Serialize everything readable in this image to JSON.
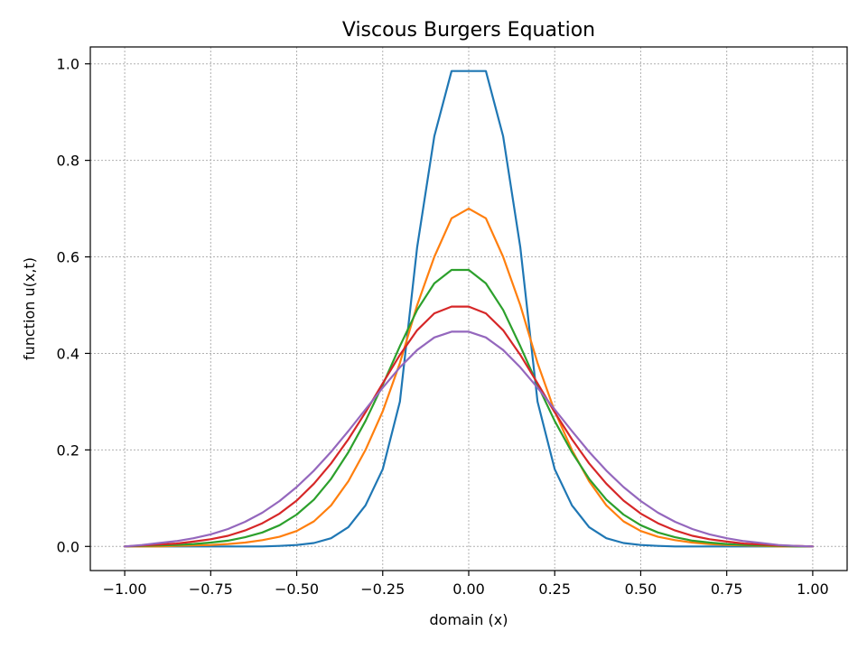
{
  "chart_data": {
    "type": "line",
    "title": "Viscous Burgers Equation",
    "xlabel": "domain (x)",
    "ylabel": "function u(x,t)",
    "xlim": [
      -1.1,
      1.1
    ],
    "ylim": [
      -0.05,
      1.035
    ],
    "grid": true,
    "x_ticks": [
      -1.0,
      -0.75,
      -0.5,
      -0.25,
      0.0,
      0.25,
      0.5,
      0.75,
      1.0
    ],
    "x_tick_labels": [
      "−1.00",
      "−0.75",
      "−0.50",
      "−0.25",
      "0.00",
      "0.25",
      "0.50",
      "0.75",
      "1.00"
    ],
    "y_ticks": [
      0.0,
      0.2,
      0.4,
      0.6,
      0.8,
      1.0
    ],
    "y_tick_labels": [
      "0.0",
      "0.2",
      "0.4",
      "0.6",
      "0.8",
      "1.0"
    ],
    "series": [
      {
        "color": "#1f77b4",
        "x": [
          -1.0,
          -0.95,
          -0.9,
          -0.85,
          -0.8,
          -0.75,
          -0.7,
          -0.65,
          -0.6,
          -0.55,
          -0.5,
          -0.45,
          -0.4,
          -0.35,
          -0.3,
          -0.25,
          -0.2,
          -0.15,
          -0.1,
          -0.05,
          0.0,
          0.05,
          0.1,
          0.15,
          0.2,
          0.25,
          0.3,
          0.35,
          0.4,
          0.45,
          0.5,
          0.55,
          0.6,
          0.65,
          0.7,
          0.75,
          0.8,
          0.85,
          0.9,
          0.95,
          1.0
        ],
        "y": [
          0.0,
          0.0,
          0.0,
          0.0,
          0.0,
          0.0,
          0.0,
          0.0,
          0.0,
          0.001,
          0.003,
          0.007,
          0.017,
          0.04,
          0.085,
          0.16,
          0.3,
          0.62,
          0.85,
          0.985,
          0.985,
          0.985,
          0.85,
          0.62,
          0.3,
          0.16,
          0.085,
          0.04,
          0.017,
          0.007,
          0.003,
          0.001,
          0.0,
          0.0,
          0.0,
          0.0,
          0.0,
          0.0,
          0.0,
          0.0,
          0.0
        ]
      },
      {
        "color": "#ff7f0e",
        "x": [
          -1.0,
          -0.95,
          -0.9,
          -0.85,
          -0.8,
          -0.75,
          -0.7,
          -0.65,
          -0.6,
          -0.55,
          -0.5,
          -0.45,
          -0.4,
          -0.35,
          -0.3,
          -0.25,
          -0.2,
          -0.15,
          -0.1,
          -0.05,
          0.0,
          0.05,
          0.1,
          0.15,
          0.2,
          0.25,
          0.3,
          0.35,
          0.4,
          0.45,
          0.5,
          0.55,
          0.6,
          0.65,
          0.7,
          0.75,
          0.8,
          0.85,
          0.9,
          0.95,
          1.0
        ],
        "y": [
          0.0,
          0.0,
          0.0,
          0.001,
          0.002,
          0.003,
          0.005,
          0.008,
          0.013,
          0.02,
          0.032,
          0.052,
          0.085,
          0.135,
          0.2,
          0.28,
          0.38,
          0.5,
          0.6,
          0.68,
          0.7,
          0.68,
          0.6,
          0.5,
          0.38,
          0.28,
          0.2,
          0.135,
          0.085,
          0.052,
          0.032,
          0.02,
          0.013,
          0.008,
          0.005,
          0.003,
          0.002,
          0.001,
          0.0,
          0.0,
          0.0
        ]
      },
      {
        "color": "#2ca02c",
        "x": [
          -1.0,
          -0.95,
          -0.9,
          -0.85,
          -0.8,
          -0.75,
          -0.7,
          -0.65,
          -0.6,
          -0.55,
          -0.5,
          -0.45,
          -0.4,
          -0.35,
          -0.3,
          -0.25,
          -0.2,
          -0.15,
          -0.1,
          -0.05,
          0.0,
          0.05,
          0.1,
          0.15,
          0.2,
          0.25,
          0.3,
          0.35,
          0.4,
          0.45,
          0.5,
          0.55,
          0.6,
          0.65,
          0.7,
          0.75,
          0.8,
          0.85,
          0.9,
          0.95,
          1.0
        ],
        "y": [
          0.0,
          0.001,
          0.002,
          0.003,
          0.005,
          0.008,
          0.012,
          0.019,
          0.029,
          0.044,
          0.066,
          0.097,
          0.14,
          0.195,
          0.26,
          0.335,
          0.415,
          0.49,
          0.545,
          0.573,
          0.573,
          0.545,
          0.49,
          0.415,
          0.335,
          0.26,
          0.195,
          0.14,
          0.097,
          0.066,
          0.044,
          0.029,
          0.019,
          0.012,
          0.008,
          0.005,
          0.003,
          0.002,
          0.001,
          0.0,
          0.0
        ]
      },
      {
        "color": "#d62728",
        "x": [
          -1.0,
          -0.95,
          -0.9,
          -0.85,
          -0.8,
          -0.75,
          -0.7,
          -0.65,
          -0.6,
          -0.55,
          -0.5,
          -0.45,
          -0.4,
          -0.35,
          -0.3,
          -0.25,
          -0.2,
          -0.15,
          -0.1,
          -0.05,
          0.0,
          0.05,
          0.1,
          0.15,
          0.2,
          0.25,
          0.3,
          0.35,
          0.4,
          0.45,
          0.5,
          0.55,
          0.6,
          0.65,
          0.7,
          0.75,
          0.8,
          0.85,
          0.9,
          0.95,
          1.0
        ],
        "y": [
          0.0,
          0.002,
          0.004,
          0.006,
          0.01,
          0.015,
          0.022,
          0.033,
          0.048,
          0.068,
          0.095,
          0.13,
          0.172,
          0.222,
          0.278,
          0.338,
          0.397,
          0.448,
          0.483,
          0.497,
          0.497,
          0.483,
          0.448,
          0.397,
          0.338,
          0.278,
          0.222,
          0.172,
          0.13,
          0.095,
          0.068,
          0.048,
          0.033,
          0.022,
          0.015,
          0.01,
          0.006,
          0.004,
          0.002,
          0.001,
          0.0
        ]
      },
      {
        "color": "#9467bd",
        "x": [
          -1.0,
          -0.95,
          -0.9,
          -0.85,
          -0.8,
          -0.75,
          -0.7,
          -0.65,
          -0.6,
          -0.55,
          -0.5,
          -0.45,
          -0.4,
          -0.35,
          -0.3,
          -0.25,
          -0.2,
          -0.15,
          -0.1,
          -0.05,
          0.0,
          0.05,
          0.1,
          0.15,
          0.2,
          0.25,
          0.3,
          0.35,
          0.4,
          0.45,
          0.5,
          0.55,
          0.6,
          0.65,
          0.7,
          0.75,
          0.8,
          0.85,
          0.9,
          0.95,
          1.0
        ],
        "y": [
          0.0,
          0.003,
          0.007,
          0.011,
          0.017,
          0.025,
          0.036,
          0.051,
          0.07,
          0.094,
          0.123,
          0.157,
          0.196,
          0.239,
          0.284,
          0.329,
          0.371,
          0.407,
          0.433,
          0.445,
          0.445,
          0.433,
          0.407,
          0.371,
          0.329,
          0.284,
          0.239,
          0.196,
          0.157,
          0.123,
          0.094,
          0.07,
          0.051,
          0.036,
          0.025,
          0.017,
          0.011,
          0.007,
          0.003,
          0.001,
          0.0
        ]
      }
    ]
  }
}
